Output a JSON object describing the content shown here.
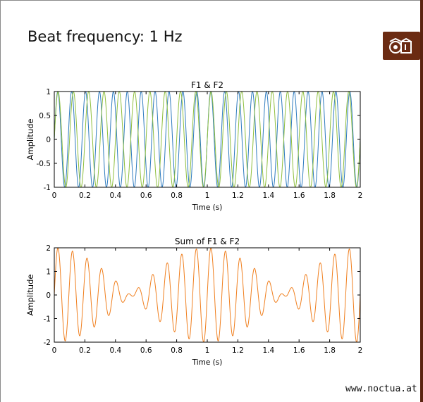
{
  "page": {
    "title": "Beat frequency: 1 Hz",
    "footer": "www.noctua.at",
    "logo_icon": "owl-logo-icon",
    "colors": {
      "logo_bg": "#6b2b12",
      "f1": "#2e7bbf",
      "f2": "#8fbf3f",
      "sum": "#f07f1e"
    }
  },
  "chart_data": [
    {
      "type": "line",
      "title": "F1 & F2",
      "xlabel": "Time (s)",
      "ylabel": "Amplitude",
      "xlim": [
        0,
        2
      ],
      "ylim": [
        -1,
        1
      ],
      "xticks": [
        "0",
        "0.2",
        "0.4",
        "0.6",
        "0.8",
        "1",
        "1.2",
        "1.4",
        "1.6",
        "1.8",
        "2"
      ],
      "yticks": [
        "-1",
        "-0.5",
        "0",
        "0.5",
        "1"
      ],
      "series": [
        {
          "color": "#2e7bbf",
          "frequency_hz": 11,
          "amplitude": 1
        },
        {
          "color": "#8fbf3f",
          "frequency_hz": 10,
          "amplitude": 1
        }
      ]
    },
    {
      "type": "line",
      "title": "Sum of F1 & F2",
      "xlabel": "Time (s)",
      "ylabel": "Amplitude",
      "xlim": [
        0,
        2
      ],
      "ylim": [
        -2,
        2
      ],
      "xticks": [
        "0",
        "0.2",
        "0.4",
        "0.6",
        "0.8",
        "1",
        "1.2",
        "1.4",
        "1.6",
        "1.8",
        "2"
      ],
      "yticks": [
        "-2",
        "-1",
        "0",
        "1",
        "2"
      ],
      "series": [
        {
          "color": "#f07f1e",
          "components_hz": [
            11,
            10
          ],
          "amplitude": 2
        }
      ]
    }
  ]
}
